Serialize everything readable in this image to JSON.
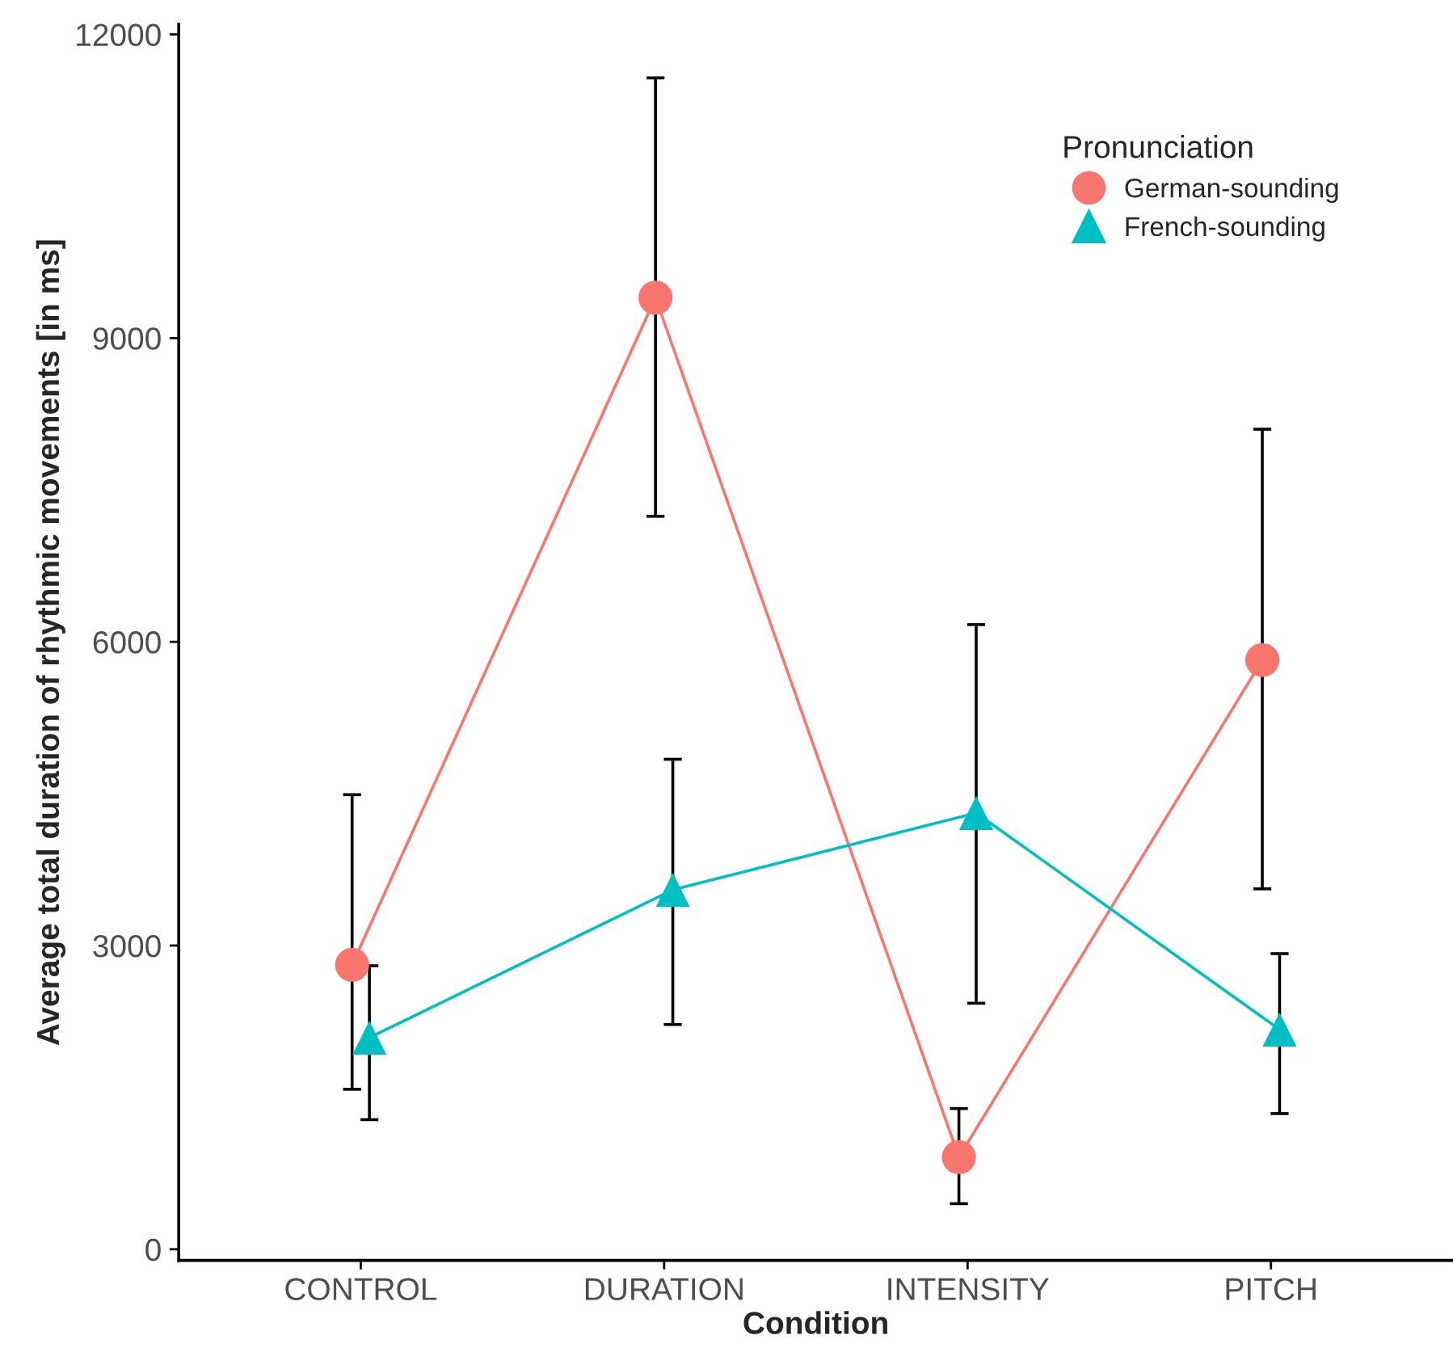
{
  "chart_data": {
    "type": "line",
    "xlabel": "Condition",
    "ylabel": "Average total duration of rhythmic movements [in ms]",
    "legend_title": "Pronunciation",
    "categories": [
      "CONTROL",
      "DURATION",
      "INTENSITY",
      "PITCH"
    ],
    "series": [
      {
        "name": "German-sounding",
        "color": "#f8766d",
        "marker": "circle",
        "values": [
          2810,
          9400,
          910,
          5820
        ],
        "errors": [
          [
            1580,
            4490
          ],
          [
            7240,
            11570
          ],
          [
            450,
            1390
          ],
          [
            3560,
            8100
          ]
        ]
      },
      {
        "name": "French-sounding",
        "color": "#00bfc4",
        "marker": "triangle",
        "values": [
          2090,
          3550,
          4310,
          2170
        ],
        "errors": [
          [
            1280,
            2800
          ],
          [
            2220,
            4840
          ],
          [
            2430,
            6170
          ],
          [
            1340,
            2920
          ]
        ]
      }
    ],
    "ylim": [
      -110,
      12100
    ],
    "yticks": [
      0,
      3000,
      6000,
      9000,
      12000
    ],
    "grid": false,
    "legend": "top right"
  }
}
